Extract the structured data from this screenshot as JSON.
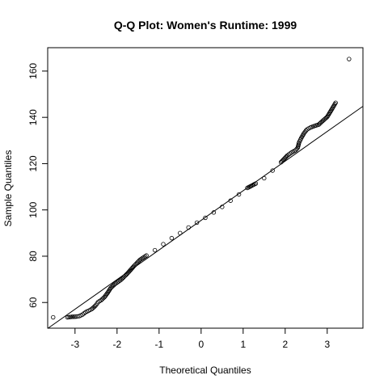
{
  "chart_data": {
    "type": "scatter",
    "title": "Q-Q Plot: Women's Runtime:  1999",
    "xlabel": "Theoretical Quantiles",
    "ylabel": "Sample Quantiles",
    "xlim": [
      -3.65,
      3.85
    ],
    "ylim": [
      48.9,
      170.1
    ],
    "x_ticks": [
      -3,
      -2,
      -1,
      0,
      1,
      2,
      3
    ],
    "y_ticks": [
      60,
      80,
      100,
      120,
      140,
      160
    ],
    "x_tick_labels": [
      "-3",
      "-2",
      "-1",
      "0",
      "1",
      "2",
      "3"
    ],
    "y_tick_labels": [
      "60",
      "80",
      "100",
      "120",
      "140",
      "160"
    ],
    "grid": false,
    "reference_line": {
      "intercept": 95.5,
      "slope": 12.8
    },
    "series": [
      {
        "points": [
          [
            -3.52,
            53.6
          ],
          [
            -3.18,
            53.6
          ],
          [
            -3.08,
            53.8
          ],
          [
            -2.98,
            53.9
          ],
          [
            -2.9,
            54.1
          ],
          [
            -2.82,
            54.8
          ],
          [
            -2.75,
            55.8
          ],
          [
            -2.68,
            56.4
          ],
          [
            -2.6,
            57.2
          ],
          [
            -2.55,
            58.0
          ],
          [
            -2.5,
            58.9
          ],
          [
            -2.45,
            60.2
          ],
          [
            -2.38,
            61.0
          ],
          [
            -2.3,
            62.3
          ],
          [
            -2.22,
            64.3
          ],
          [
            -2.15,
            66.3
          ],
          [
            -2.05,
            68.0
          ],
          [
            -1.9,
            69.9
          ],
          [
            -1.75,
            72.6
          ],
          [
            -1.6,
            75.7
          ],
          [
            -1.45,
            78.5
          ],
          [
            -1.3,
            80.3
          ],
          [
            -1.1,
            82.6
          ],
          [
            -0.9,
            85.2
          ],
          [
            -0.7,
            87.8
          ],
          [
            -0.5,
            90.0
          ],
          [
            -0.3,
            92.4
          ],
          [
            -0.1,
            94.5
          ],
          [
            0.1,
            96.6
          ],
          [
            0.3,
            98.9
          ],
          [
            0.5,
            101.3
          ],
          [
            0.7,
            104.0
          ],
          [
            0.9,
            106.7
          ],
          [
            1.1,
            109.5
          ],
          [
            1.3,
            111.4
          ],
          [
            1.5,
            113.7
          ],
          [
            1.7,
            117.0
          ],
          [
            1.9,
            120.6
          ],
          [
            2.05,
            123.5
          ],
          [
            2.15,
            124.8
          ],
          [
            2.25,
            125.8
          ],
          [
            2.3,
            126.9
          ],
          [
            2.33,
            129.1
          ],
          [
            2.38,
            131.0
          ],
          [
            2.45,
            133.2
          ],
          [
            2.52,
            134.8
          ],
          [
            2.6,
            135.6
          ],
          [
            2.7,
            136.3
          ],
          [
            2.8,
            136.9
          ],
          [
            2.9,
            138.6
          ],
          [
            3.0,
            140.2
          ],
          [
            3.1,
            143.2
          ],
          [
            3.2,
            146.3
          ],
          [
            3.52,
            165.2
          ]
        ]
      }
    ]
  }
}
